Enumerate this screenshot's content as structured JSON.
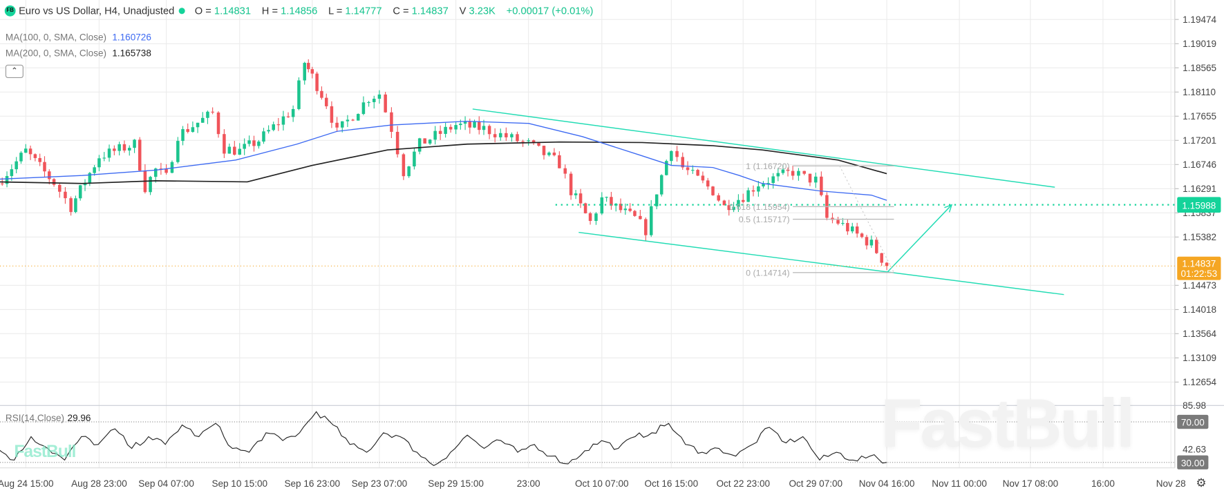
{
  "header": {
    "logo_text": "FB",
    "title": "Euro vs US Dollar, H4, Unadjusted",
    "ohlc": [
      {
        "label": "O =",
        "value": "1.14831"
      },
      {
        "label": "H =",
        "value": "1.14856"
      },
      {
        "label": "L =",
        "value": "1.14777"
      },
      {
        "label": "C =",
        "value": "1.14837"
      },
      {
        "label": "V",
        "value": "3.23K"
      }
    ],
    "change": "+0.00017 (+0.01%)"
  },
  "indicators": {
    "ma100": {
      "label": "MA(100, 0, SMA, Close)",
      "value": "1.160726",
      "color": "#3d6af2"
    },
    "ma200": {
      "label": "MA(200, 0, SMA, Close)",
      "value": "1.165738",
      "color": "#222222"
    },
    "collapse_icon": "chevron-up-icon"
  },
  "rsi": {
    "label": "RSI(14,Close)",
    "value": "29.96",
    "axis_labels": [
      "85.98",
      "42.63"
    ],
    "levels": [
      {
        "value": 70,
        "label": "70.00"
      },
      {
        "value": 30,
        "label": "30.00"
      }
    ],
    "values": [
      43.8,
      32.3,
      55.4,
      43.8,
      32.3,
      55.4,
      47.7,
      63.1,
      43.8,
      55.4,
      47.7,
      66.9,
      55.4,
      68.5,
      43.8,
      40,
      59.2,
      51.5,
      59.2,
      80,
      66.9,
      47.7,
      40,
      59.2,
      55.4,
      40,
      26.9,
      40,
      56.9,
      43.8,
      51.5,
      40,
      47.7,
      36.2,
      28.5,
      41.5,
      51.5,
      43.8,
      55.4,
      59.2,
      68.5,
      47.7,
      40,
      43.8,
      36.2,
      47.7,
      64.6,
      49.2,
      55.4,
      32.3,
      40,
      32.3,
      36.2,
      29.96
    ]
  },
  "watermark": "FastBull",
  "settings_icon": "gear-icon",
  "colors": {
    "up": "#1cc48e",
    "down": "#f0545a",
    "trendline": "#22dcb4",
    "current_price": "#f5a623",
    "target": "#14d39a",
    "fib": "#bbbbbb"
  },
  "chart_data": {
    "type": "candlestick",
    "symbol": "Euro vs US Dollar",
    "timeframe": "H4",
    "y_ticks": [
      "1.19474",
      "1.19019",
      "1.18565",
      "1.18110",
      "1.17655",
      "1.17201",
      "1.16746",
      "1.16291",
      "1.15837",
      "1.15382",
      "1.14473",
      "1.14018",
      "1.13564",
      "1.13109",
      "1.12654"
    ],
    "x_ticks": [
      "Aug 24 15:00",
      "Aug 28 23:00",
      "Sep 04 07:00",
      "Sep 10 15:00",
      "Sep 16 23:00",
      "Sep 23 07:00",
      "Sep 29 15:00",
      "23:00",
      "Oct 10 07:00",
      "Oct 16 15:00",
      "Oct 22 23:00",
      "Oct 29 07:00",
      "Nov 04 16:00",
      "Nov 11 00:00",
      "Nov 17 08:00",
      "16:00",
      "Nov 28"
    ],
    "ylim": [
      1.122,
      1.1984
    ],
    "close_path": [
      [
        "08-22 23:00",
        1.1639
      ],
      [
        "08-24 15:00",
        1.17
      ],
      [
        "08-26 07:00",
        1.164
      ],
      [
        "08-27 07:00",
        1.1595
      ],
      [
        "08-28 23:00",
        1.169
      ],
      [
        "09-01 07:00",
        1.1713
      ],
      [
        "09-02 07:00",
        1.1632
      ],
      [
        "09-03 07:00",
        1.1665
      ],
      [
        "09-04 07:00",
        1.165
      ],
      [
        "09-05 07:00",
        1.173
      ],
      [
        "09-08 07:00",
        1.1771
      ],
      [
        "09-09 07:00",
        1.1705
      ],
      [
        "09-10 15:00",
        1.17
      ],
      [
        "09-12 07:00",
        1.172
      ],
      [
        "09-15 07:00",
        1.1779
      ],
      [
        "09-16 07:00",
        1.1867
      ],
      [
        "09-16 23:00",
        1.184
      ],
      [
        "09-18 07:00",
        1.179
      ],
      [
        "09-19 07:00",
        1.1735
      ],
      [
        "09-22 07:00",
        1.18
      ],
      [
        "09-23 07:00",
        1.1808
      ],
      [
        "09-24 07:00",
        1.1742
      ],
      [
        "09-25 07:00",
        1.1661
      ],
      [
        "09-26 15:00",
        1.1713
      ],
      [
        "09-29 15:00",
        1.1749
      ],
      [
        "10-01 07:00",
        1.1742
      ],
      [
        "10-02 15:00",
        1.1727
      ],
      [
        "10-03 23:00",
        1.1713
      ],
      [
        "10-06 15:00",
        1.1676
      ],
      [
        "10-07 15:00",
        1.1625
      ],
      [
        "10-09 07:00",
        1.1566
      ],
      [
        "10-10 07:00",
        1.161
      ],
      [
        "10-13 07:00",
        1.1573
      ],
      [
        "10-14 07:00",
        1.1551
      ],
      [
        "10-15 07:00",
        1.1625
      ],
      [
        "10-16 15:00",
        1.171
      ],
      [
        "10-17 15:00",
        1.1669
      ],
      [
        "10-20 07:00",
        1.1625
      ],
      [
        "10-21 07:00",
        1.1595
      ],
      [
        "10-22 23:00",
        1.1615
      ],
      [
        "10-24 07:00",
        1.1639
      ],
      [
        "10-27 07:00",
        1.1661
      ],
      [
        "10-28 07:00",
        1.165
      ],
      [
        "10-29 07:00",
        1.1645
      ],
      [
        "10-30 07:00",
        1.1573
      ],
      [
        "10-31 07:00",
        1.1566
      ],
      [
        "11-03 07:00",
        1.1525
      ],
      [
        "11-04 16:00",
        1.14837
      ]
    ],
    "ma100": [
      [
        "08-22 23:00",
        1.1647
      ],
      [
        "08-27 23:00",
        1.1654
      ],
      [
        "09-03 07:00",
        1.1664
      ],
      [
        "09-10 07:00",
        1.1683
      ],
      [
        "09-15 15:00",
        1.1713
      ],
      [
        "09-19 07:00",
        1.1737
      ],
      [
        "09-24 07:00",
        1.1749
      ],
      [
        "09-30 07:00",
        1.1756
      ],
      [
        "10-03 23:00",
        1.1752
      ],
      [
        "10-08 15:00",
        1.1727
      ],
      [
        "10-13 23:00",
        1.1691
      ],
      [
        "10-16 15:00",
        1.1673
      ],
      [
        "10-20 07:00",
        1.1669
      ],
      [
        "10-22 15:00",
        1.1654
      ],
      [
        "10-24 15:00",
        1.1639
      ],
      [
        "10-29 15:00",
        1.1625
      ],
      [
        "11-03 07:00",
        1.1617
      ],
      [
        "11-04 16:00",
        1.160726
      ]
    ],
    "ma200": [
      [
        "08-22 23:00",
        1.1642
      ],
      [
        "08-27 23:00",
        1.1639
      ],
      [
        "09-03 07:00",
        1.1644
      ],
      [
        "09-11 07:00",
        1.1642
      ],
      [
        "09-16 23:00",
        1.1673
      ],
      [
        "09-23 23:00",
        1.1702
      ],
      [
        "09-30 07:00",
        1.1713
      ],
      [
        "10-06 15:00",
        1.1717
      ],
      [
        "10-13 23:00",
        1.1716
      ],
      [
        "10-20 07:00",
        1.171
      ],
      [
        "10-24 15:00",
        1.1702
      ],
      [
        "10-31 07:00",
        1.1683
      ],
      [
        "11-04 16:00",
        1.165738
      ]
    ],
    "channel_upper": [
      [
        "09-30 15:00",
        1.1779
      ],
      [
        "11-18 19:00",
        1.1632
      ]
    ],
    "channel_lower": [
      [
        "10-08 07:00",
        1.1547
      ],
      [
        "11-19 08:00",
        1.143
      ]
    ],
    "projection": [
      [
        "11-04 16:00",
        1.1471
      ],
      [
        "11-10 08:00",
        1.15988
      ]
    ],
    "target_level": {
      "price": 1.15988,
      "label": "1.15988",
      "from": "10-06 07:00"
    },
    "fibonacci": {
      "from": "10-27 07:00",
      "to": "11-05 07:00",
      "levels": [
        {
          "ratio": "1",
          "price": 1.1672,
          "label": "1 (1.16720)"
        },
        {
          "ratio": "0.618",
          "price": 1.15954,
          "label": "0.618 (1.15954)"
        },
        {
          "ratio": "0.5",
          "price": 1.15717,
          "label": "0.5 (1.15717)"
        },
        {
          "ratio": "0",
          "price": 1.14714,
          "label": "0 (1.14714)"
        }
      ]
    },
    "current_price": {
      "price": 1.14837,
      "label": "1.14837",
      "countdown": "01:22:53"
    },
    "grid": true
  }
}
